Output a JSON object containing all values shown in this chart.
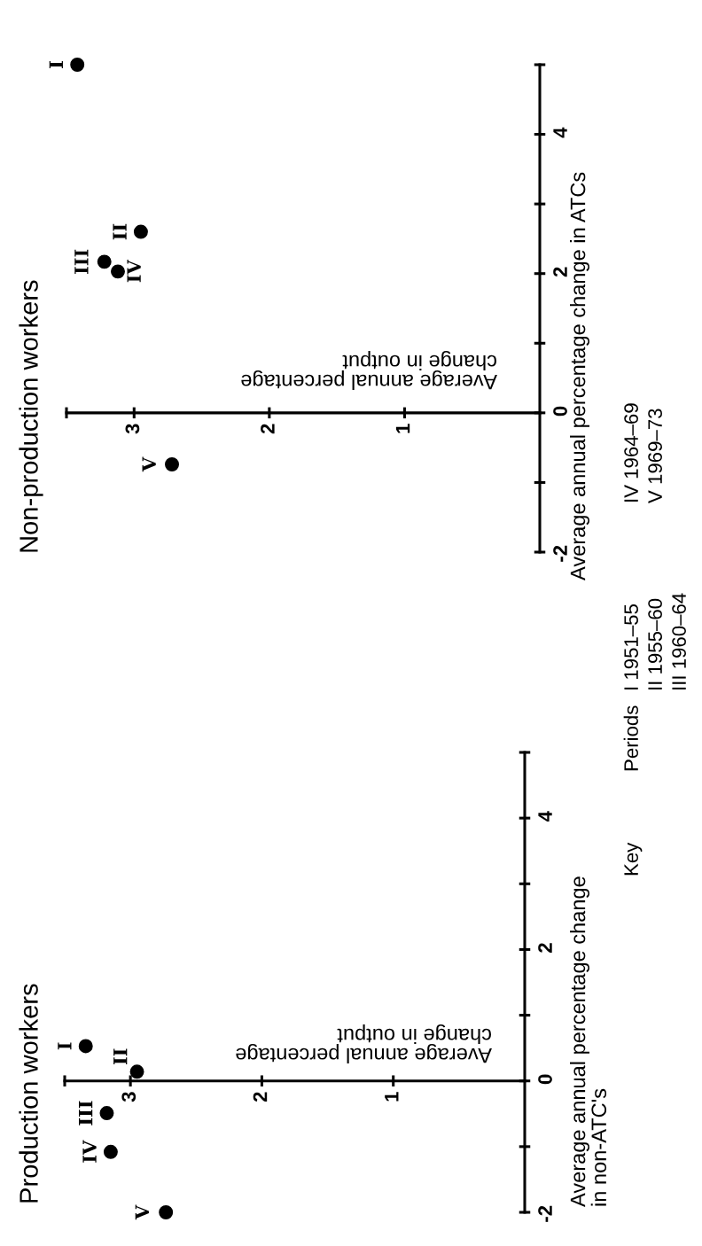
{
  "chart_data": [
    {
      "type": "scatter",
      "title": "Production workers",
      "xlabel": "Average annual percentage\nchange in output",
      "ylabel": "Average annual percentage change\nin non-ATC's",
      "color": "#000000",
      "marker": "circle",
      "x": [
        3.34,
        2.95,
        3.18,
        3.15,
        2.73
      ],
      "values": [
        0.53,
        0.14,
        -0.49,
        -1.08,
        -2.0
      ],
      "xlim": [
        3.5,
        0
      ],
      "xticks": [
        {
          "value": 3.5,
          "label": null
        },
        3,
        2,
        1
      ],
      "ylim": [
        -2,
        5
      ],
      "yticks": [
        -2,
        {
          "value": -1,
          "label": null
        },
        0,
        {
          "value": 1,
          "label": null
        },
        2,
        {
          "value": 3,
          "label": null
        },
        4,
        {
          "value": 5,
          "label": null
        }
      ],
      "annotations": [
        {
          "text": "I",
          "x": 3.34,
          "y": 0.53
        },
        {
          "text": "II",
          "x": 2.95,
          "y": 0.14
        },
        {
          "text": "III",
          "x": 3.18,
          "y": -0.49
        },
        {
          "text": "IV",
          "x": 3.15,
          "y": -1.08
        },
        {
          "text": "V",
          "x": 2.73,
          "y": -2.0
        },
        "Key",
        "Periods",
        "I 1951–55",
        "II 1955–60",
        "III 1960–64",
        "IV 1964–69",
        "V 1969–73"
      ]
    },
    {
      "type": "scatter",
      "title": "Non-production workers",
      "xlabel": "Average annual percentage\nchange in output",
      "ylabel": "Average annual percentage change in ATCs",
      "color": "#000000",
      "marker": "circle",
      "x": [
        3.42,
        2.95,
        3.22,
        3.12,
        2.72
      ],
      "values": [
        5.0,
        2.6,
        2.17,
        2.03,
        -0.74
      ],
      "xlim": [
        3.5,
        0
      ],
      "xticks": [
        {
          "value": 3.5,
          "label": null
        },
        3,
        2,
        1
      ],
      "ylim": [
        -2,
        5
      ],
      "yticks": [
        -2,
        {
          "value": -1,
          "label": null
        },
        0,
        {
          "value": 1,
          "label": null
        },
        2,
        {
          "value": 3,
          "label": null
        },
        4,
        {
          "value": 5,
          "label": null
        }
      ],
      "annotations": [
        {
          "text": "I",
          "x": 3.42,
          "y": 5.0
        },
        {
          "text": "II",
          "x": 2.95,
          "y": 2.6
        },
        {
          "text": "III",
          "x": 3.22,
          "y": 2.17
        },
        {
          "text": "IV",
          "x": 3.12,
          "y": 2.03
        },
        {
          "text": "V",
          "x": 2.72,
          "y": -0.74
        }
      ]
    }
  ]
}
